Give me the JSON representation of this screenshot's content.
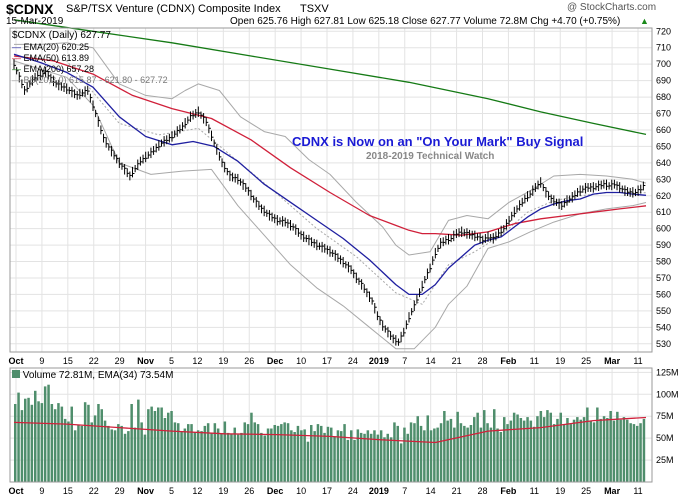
{
  "header": {
    "symbol": "$CDNX",
    "name": "S&P/TSX Venture (CDNX) Composite Index",
    "exchange": "TSXV",
    "date": "15-Mar-2019",
    "watermark": "@ StockCharts.com",
    "quote": "Open 625.76  High 627.81  Low 625.18  Close 627.77  Volume 72.8M  Chg +4.70 (+0.75%)",
    "quote_arrow": "▲"
  },
  "legend": {
    "price": "$CDNX (Daily) 627.77",
    "ema20": "EMA(20) 620.25",
    "ema50": "EMA(50) 613.89",
    "ema200": "EMA(200) 657.28",
    "bb": "BB(20,2.0) 615.87 - 621.80 - 627.72"
  },
  "annotation": {
    "title": "CDNX is Now on an \"On Your Mark\" Buy Signal",
    "subtitle": "2018-2019 Technical Watch"
  },
  "volume_legend": "Volume 72.81M, EMA(34) 73.54M",
  "colors": {
    "price": "#000000",
    "ema20": "#1f1fa0",
    "ema50": "#d0203a",
    "ema200": "#157a15",
    "bb": "#a8a8a8",
    "volume_bar": "#4f8e6c",
    "volume_ema": "#d0203a",
    "title": "#1a1ad4",
    "grid": "#e3e3e3",
    "up_arrow": "#1a8a1a"
  },
  "chart_data": {
    "type": "line",
    "x_labels": [
      "Oct",
      "9",
      "15",
      "22",
      "29",
      "Nov",
      "5",
      "12",
      "19",
      "26",
      "Dec",
      "10",
      "17",
      "24",
      "2019",
      "7",
      "14",
      "21",
      "28",
      "Feb",
      "11",
      "19",
      "25",
      "Mar",
      "11"
    ],
    "price_axis": {
      "ylim": [
        525,
        722
      ],
      "ticks": [
        530,
        540,
        550,
        560,
        570,
        580,
        590,
        600,
        610,
        620,
        630,
        640,
        650,
        660,
        670,
        680,
        690,
        700,
        710,
        720
      ]
    },
    "volume_axis": {
      "ylim": [
        0,
        130
      ],
      "ticks": [
        "25M",
        "50M",
        "75M",
        "100M",
        "125M"
      ],
      "tick_values": [
        25,
        50,
        75,
        100,
        125
      ]
    },
    "series": [
      {
        "name": "$CDNX (Daily)",
        "values": [
          [
            0,
            700
          ],
          [
            4,
            684
          ],
          [
            8,
            692
          ],
          [
            12,
            695
          ],
          [
            16,
            688
          ],
          [
            20,
            685
          ],
          [
            24,
            681
          ],
          [
            28,
            684
          ],
          [
            31,
            670
          ],
          [
            34,
            655
          ],
          [
            37,
            647
          ],
          [
            40,
            640
          ],
          [
            44,
            632
          ],
          [
            48,
            641
          ],
          [
            52,
            646
          ],
          [
            56,
            652
          ],
          [
            60,
            656
          ],
          [
            64,
            662
          ],
          [
            67,
            668
          ],
          [
            70,
            671
          ],
          [
            73,
            665
          ],
          [
            76,
            652
          ],
          [
            79,
            640
          ],
          [
            82,
            632
          ],
          [
            85,
            630
          ],
          [
            88,
            625
          ],
          [
            91,
            618
          ],
          [
            94,
            612
          ],
          [
            97,
            608
          ],
          [
            100,
            605
          ],
          [
            103,
            604
          ],
          [
            106,
            601
          ],
          [
            109,
            596
          ],
          [
            112,
            593
          ],
          [
            115,
            590
          ],
          [
            118,
            588
          ],
          [
            121,
            585
          ],
          [
            124,
            581
          ],
          [
            126,
            578
          ],
          [
            128,
            575
          ],
          [
            130,
            570
          ],
          [
            132,
            566
          ],
          [
            134,
            561
          ],
          [
            136,
            556
          ],
          [
            138,
            547
          ],
          [
            140,
            541
          ],
          [
            142,
            537
          ],
          [
            144,
            533
          ],
          [
            146,
            531
          ],
          [
            148,
            537
          ],
          [
            150,
            546
          ],
          [
            152,
            553
          ],
          [
            154,
            561
          ],
          [
            156,
            569
          ],
          [
            158,
            576
          ],
          [
            160,
            585
          ],
          [
            162,
            591
          ],
          [
            164,
            593
          ],
          [
            166,
            594
          ],
          [
            168,
            597
          ],
          [
            170,
            598
          ],
          [
            172,
            597
          ],
          [
            174,
            596
          ],
          [
            176,
            595
          ],
          [
            178,
            593
          ],
          [
            180,
            595
          ],
          [
            182,
            594
          ],
          [
            184,
            597
          ],
          [
            186,
            600
          ],
          [
            188,
            605
          ],
          [
            190,
            610
          ],
          [
            192,
            614
          ],
          [
            194,
            618
          ],
          [
            196,
            621
          ],
          [
            198,
            625
          ],
          [
            200,
            628
          ],
          [
            202,
            622
          ],
          [
            204,
            618
          ],
          [
            206,
            616
          ],
          [
            208,
            614
          ],
          [
            210,
            617
          ],
          [
            212,
            619
          ],
          [
            214,
            622
          ],
          [
            216,
            624
          ],
          [
            218,
            625
          ],
          [
            220,
            625
          ],
          [
            222,
            626
          ],
          [
            224,
            627
          ],
          [
            226,
            626
          ],
          [
            228,
            627
          ],
          [
            230,
            625
          ],
          [
            232,
            623
          ],
          [
            234,
            622
          ],
          [
            236,
            622
          ],
          [
            238,
            624
          ],
          [
            240,
            627.77
          ]
        ]
      },
      {
        "name": "EMA(20)",
        "values": [
          [
            0,
            706
          ],
          [
            10,
            701
          ],
          [
            20,
            695
          ],
          [
            30,
            686
          ],
          [
            40,
            668
          ],
          [
            50,
            656
          ],
          [
            60,
            651
          ],
          [
            68,
            653
          ],
          [
            76,
            650
          ],
          [
            85,
            641
          ],
          [
            95,
            627
          ],
          [
            105,
            616
          ],
          [
            115,
            605
          ],
          [
            125,
            594
          ],
          [
            135,
            581
          ],
          [
            145,
            566
          ],
          [
            150,
            560
          ],
          [
            155,
            560
          ],
          [
            160,
            566
          ],
          [
            165,
            576
          ],
          [
            170,
            583
          ],
          [
            175,
            590
          ],
          [
            180,
            593
          ],
          [
            185,
            595
          ],
          [
            190,
            601
          ],
          [
            195,
            607
          ],
          [
            200,
            612
          ],
          [
            205,
            615
          ],
          [
            210,
            617
          ],
          [
            215,
            618
          ],
          [
            220,
            621
          ],
          [
            225,
            622
          ],
          [
            230,
            622
          ],
          [
            235,
            621
          ],
          [
            240,
            620.25
          ]
        ]
      },
      {
        "name": "EMA(50)",
        "values": [
          [
            0,
            705
          ],
          [
            15,
            702
          ],
          [
            30,
            694
          ],
          [
            45,
            681
          ],
          [
            60,
            673
          ],
          [
            75,
            667
          ],
          [
            90,
            654
          ],
          [
            105,
            637
          ],
          [
            120,
            622
          ],
          [
            135,
            608
          ],
          [
            145,
            602
          ],
          [
            150,
            599
          ],
          [
            155,
            597
          ],
          [
            160,
            597
          ],
          [
            170,
            596
          ],
          [
            180,
            598
          ],
          [
            190,
            603
          ],
          [
            200,
            606
          ],
          [
            210,
            608
          ],
          [
            220,
            610
          ],
          [
            230,
            612
          ],
          [
            240,
            613.89
          ]
        ]
      },
      {
        "name": "EMA(200)",
        "values": [
          [
            0,
            727
          ],
          [
            30,
            720
          ],
          [
            60,
            713
          ],
          [
            90,
            705
          ],
          [
            120,
            697
          ],
          [
            150,
            689
          ],
          [
            180,
            679
          ],
          [
            200,
            671
          ],
          [
            220,
            664
          ],
          [
            240,
            657.28
          ]
        ]
      },
      {
        "name": "BB Upper",
        "values": [
          [
            0,
            712
          ],
          [
            10,
            712
          ],
          [
            20,
            713
          ],
          [
            30,
            710
          ],
          [
            40,
            688
          ],
          [
            50,
            681
          ],
          [
            60,
            679
          ],
          [
            65,
            684
          ],
          [
            70,
            688
          ],
          [
            78,
            684
          ],
          [
            86,
            668
          ],
          [
            95,
            659
          ],
          [
            103,
            656
          ],
          [
            112,
            642
          ],
          [
            120,
            633
          ],
          [
            130,
            616
          ],
          [
            140,
            601
          ],
          [
            145,
            590
          ],
          [
            150,
            584
          ],
          [
            158,
            586
          ],
          [
            165,
            605
          ],
          [
            172,
            608
          ],
          [
            180,
            606
          ],
          [
            188,
            616
          ],
          [
            196,
            623
          ],
          [
            205,
            632
          ],
          [
            215,
            633
          ],
          [
            225,
            632
          ],
          [
            235,
            630
          ],
          [
            240,
            627.72
          ]
        ]
      },
      {
        "name": "BB Lower",
        "values": [
          [
            0,
            702
          ],
          [
            20,
            692
          ],
          [
            30,
            675
          ],
          [
            40,
            640
          ],
          [
            52,
            633
          ],
          [
            64,
            635
          ],
          [
            75,
            636
          ],
          [
            85,
            614
          ],
          [
            95,
            596
          ],
          [
            105,
            578
          ],
          [
            115,
            564
          ],
          [
            125,
            553
          ],
          [
            135,
            540
          ],
          [
            145,
            527
          ],
          [
            152,
            527
          ],
          [
            160,
            540
          ],
          [
            165,
            554
          ],
          [
            172,
            565
          ],
          [
            180,
            588
          ],
          [
            188,
            592
          ],
          [
            196,
            598
          ],
          [
            205,
            604
          ],
          [
            215,
            609
          ],
          [
            225,
            612
          ],
          [
            235,
            614
          ],
          [
            240,
            615.87
          ]
        ]
      },
      {
        "name": "BB Middle",
        "values": [
          [
            0,
            705
          ],
          [
            20,
            702
          ],
          [
            40,
            664
          ],
          [
            55,
            657
          ],
          [
            70,
            661
          ],
          [
            85,
            641
          ],
          [
            100,
            621
          ],
          [
            115,
            600
          ],
          [
            130,
            583
          ],
          [
            145,
            561
          ],
          [
            155,
            554
          ],
          [
            165,
            578
          ],
          [
            175,
            586
          ],
          [
            185,
            596
          ],
          [
            195,
            610
          ],
          [
            205,
            617
          ],
          [
            215,
            620
          ],
          [
            225,
            622
          ],
          [
            235,
            622
          ],
          [
            240,
            621.8
          ]
        ]
      }
    ],
    "volume": {
      "ema34": [
        [
          0,
          68
        ],
        [
          20,
          66
        ],
        [
          40,
          62
        ],
        [
          60,
          58
        ],
        [
          80,
          55
        ],
        [
          100,
          54
        ],
        [
          120,
          52
        ],
        [
          140,
          48
        ],
        [
          160,
          45
        ],
        [
          180,
          58
        ],
        [
          200,
          62
        ],
        [
          220,
          70
        ],
        [
          240,
          73.54
        ]
      ],
      "bars_m": [
        89,
        102,
        82,
        95,
        96,
        88,
        104,
        92,
        90,
        109,
        111,
        89,
        83,
        90,
        86,
        72,
        69,
        86,
        59,
        65,
        64,
        91,
        88,
        68,
        76,
        89,
        83,
        70,
        64,
        60,
        59,
        66,
        64,
        55,
        58,
        89,
        62,
        94,
        68,
        54,
        83,
        86,
        81,
        85,
        85,
        73,
        79,
        81,
        68,
        67,
        57,
        61,
        66,
        66,
        57,
        59,
        58,
        64,
        67,
        56,
        67,
        61,
        55,
        69,
        56,
        55,
        62,
        54,
        56,
        68,
        66,
        79,
        68,
        66,
        56,
        53,
        61,
        61,
        65,
        64,
        66,
        68,
        67,
        59,
        57,
        64,
        59,
        60,
        46,
        65,
        58,
        66,
        64,
        56,
        63,
        62,
        52,
        59,
        58,
        66,
        48,
        59,
        48,
        60,
        56,
        55,
        59,
        55,
        59,
        54,
        59,
        51,
        55,
        51,
        68,
        64,
        44,
        62,
        55,
        68,
        67,
        75,
        64,
        59,
        76,
        59,
        61,
        62,
        67,
        81,
        70,
        72,
        62,
        80,
        67,
        64,
        62,
        65,
        74,
        79,
        62,
        82,
        67,
        62,
        83,
        61,
        57,
        74,
        66,
        70,
        79,
        77,
        73,
        70,
        74,
        70,
        63,
        75,
        81,
        74,
        82,
        79,
        66,
        72,
        79,
        65,
        73,
        66,
        71,
        74,
        71,
        74,
        85,
        70,
        68,
        85,
        72,
        75,
        73,
        81,
        70,
        80,
        71,
        74,
        71,
        67,
        66,
        64,
        67,
        72
      ]
    }
  }
}
